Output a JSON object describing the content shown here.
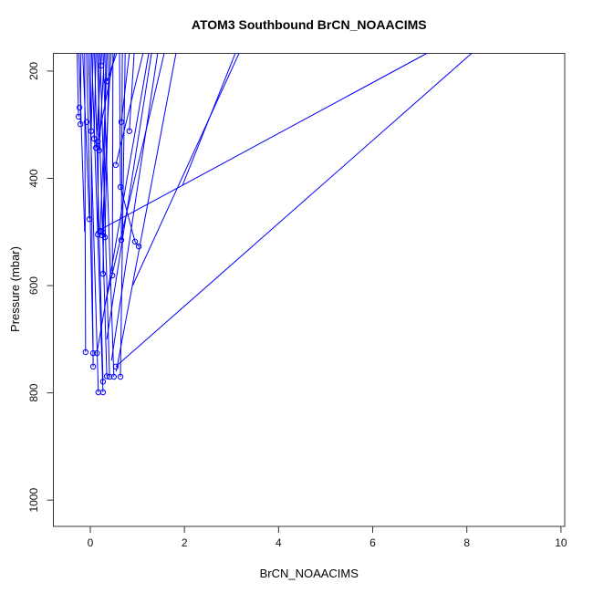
{
  "chart_data": {
    "type": "line",
    "title": "ATOM3 Southbound BrCN_NOAACIMS",
    "xlabel": "BrCN_NOAACIMS",
    "ylabel": "Pressure (mbar)",
    "x_ticks": [
      0,
      2,
      4,
      6,
      8,
      10
    ],
    "y_ticks": [
      200,
      400,
      600,
      800,
      1000
    ],
    "xlim": [
      -0.785,
      10.08
    ],
    "ylim": [
      1049,
      167
    ],
    "y_axis_reversed": true,
    "grid": false,
    "legend": null,
    "series_color": "#0000FF",
    "axis_color": "#333333",
    "marker_style": "open-circle",
    "lines": [
      [
        [
          -0.28,
          167
        ],
        [
          -0.25,
          285
        ]
      ],
      [
        [
          -0.24,
          167
        ],
        [
          -0.12,
          500
        ]
      ],
      [
        [
          -0.2,
          167
        ],
        [
          -0.21,
          299
        ]
      ],
      [
        [
          -0.16,
          167
        ],
        [
          -0.02,
          476
        ]
      ],
      [
        [
          -0.12,
          167
        ],
        [
          -0.1,
          724
        ]
      ],
      [
        [
          -0.08,
          167
        ],
        [
          0.06,
          726
        ]
      ],
      [
        [
          -0.04,
          167
        ],
        [
          0.17,
          799
        ]
      ],
      [
        [
          0.0,
          167
        ],
        [
          0.06,
          751
        ]
      ],
      [
        [
          0.03,
          167
        ],
        [
          0.27,
          799
        ]
      ],
      [
        [
          0.06,
          167
        ],
        [
          0.02,
          312
        ]
      ],
      [
        [
          0.09,
          167
        ],
        [
          0.27,
          779
        ]
      ],
      [
        [
          0.12,
          167
        ],
        [
          0.08,
          326
        ]
      ],
      [
        [
          0.15,
          167
        ],
        [
          0.35,
          769
        ]
      ],
      [
        [
          0.18,
          167
        ],
        [
          0.16,
          505
        ]
      ],
      [
        [
          0.21,
          167
        ],
        [
          0.41,
          770
        ]
      ],
      [
        [
          0.24,
          167
        ],
        [
          0.12,
          343
        ]
      ],
      [
        [
          0.27,
          167
        ],
        [
          0.5,
          770
        ]
      ],
      [
        [
          0.3,
          167
        ],
        [
          0.19,
          348
        ]
      ],
      [
        [
          0.33,
          167
        ],
        [
          0.27,
          578
        ]
      ],
      [
        [
          0.36,
          167
        ],
        [
          0.21,
          498
        ]
      ],
      [
        [
          0.4,
          167
        ],
        [
          0.31,
          510
        ]
      ],
      [
        [
          0.44,
          167
        ],
        [
          0.25,
          506
        ]
      ],
      [
        [
          0.48,
          167
        ],
        [
          0.47,
          581
        ]
      ],
      [
        [
          0.52,
          167
        ],
        [
          0.16,
          331
        ]
      ],
      [
        [
          0.56,
          167
        ],
        [
          0.35,
          219
        ]
      ],
      [
        [
          0.62,
          167
        ],
        [
          0.64,
          416
        ],
        [
          0.95,
          518
        ],
        [
          1.03,
          527
        ]
      ],
      [
        [
          0.68,
          167
        ],
        [
          0.66,
          515
        ]
      ],
      [
        [
          0.74,
          167
        ],
        [
          0.64,
          770
        ]
      ],
      [
        [
          0.83,
          167
        ],
        [
          0.66,
          295
        ]
      ],
      [
        [
          0.93,
          167
        ],
        [
          0.83,
          312
        ]
      ],
      [
        [
          1.12,
          167
        ],
        [
          0.54,
          375
        ]
      ],
      [
        [
          1.24,
          167
        ],
        [
          0.14,
          726
        ]
      ],
      [
        [
          1.3,
          167
        ],
        [
          0.35,
          700
        ]
      ],
      [
        [
          1.43,
          167
        ],
        [
          0.45,
          740
        ]
      ],
      [
        [
          1.57,
          167
        ],
        [
          0.3,
          640
        ]
      ],
      [
        [
          1.82,
          167
        ],
        [
          0.55,
          760
        ]
      ],
      [
        [
          3.08,
          167
        ],
        [
          1.96,
          413
        ]
      ],
      [
        [
          3.16,
          167
        ],
        [
          0.9,
          600
        ]
      ],
      [
        [
          0.12,
          500
        ],
        [
          7.15,
          167
        ]
      ],
      [
        [
          0.54,
          751
        ],
        [
          8.1,
          167
        ]
      ]
    ],
    "markers": [
      [
        -0.23,
        268
      ],
      [
        -0.25,
        285
      ],
      [
        -0.21,
        299
      ],
      [
        -0.08,
        295
      ],
      [
        0.23,
        190
      ],
      [
        0.35,
        219
      ],
      [
        0.02,
        312
      ],
      [
        0.08,
        326
      ],
      [
        0.16,
        331
      ],
      [
        0.12,
        343
      ],
      [
        0.19,
        348
      ],
      [
        0.66,
        295
      ],
      [
        0.83,
        312
      ],
      [
        0.54,
        375
      ],
      [
        0.64,
        416
      ],
      [
        -0.02,
        476
      ],
      [
        0.21,
        498
      ],
      [
        0.27,
        501
      ],
      [
        0.16,
        505
      ],
      [
        0.25,
        506
      ],
      [
        0.31,
        510
      ],
      [
        0.66,
        515
      ],
      [
        0.95,
        518
      ],
      [
        1.03,
        527
      ],
      [
        0.27,
        578
      ],
      [
        0.47,
        581
      ],
      [
        -0.1,
        724
      ],
      [
        0.06,
        726
      ],
      [
        0.14,
        726
      ],
      [
        0.06,
        751
      ],
      [
        0.54,
        751
      ],
      [
        0.35,
        769
      ],
      [
        0.41,
        770
      ],
      [
        0.5,
        770
      ],
      [
        0.27,
        779
      ],
      [
        0.64,
        770
      ],
      [
        0.17,
        799
      ],
      [
        0.27,
        799
      ]
    ]
  }
}
